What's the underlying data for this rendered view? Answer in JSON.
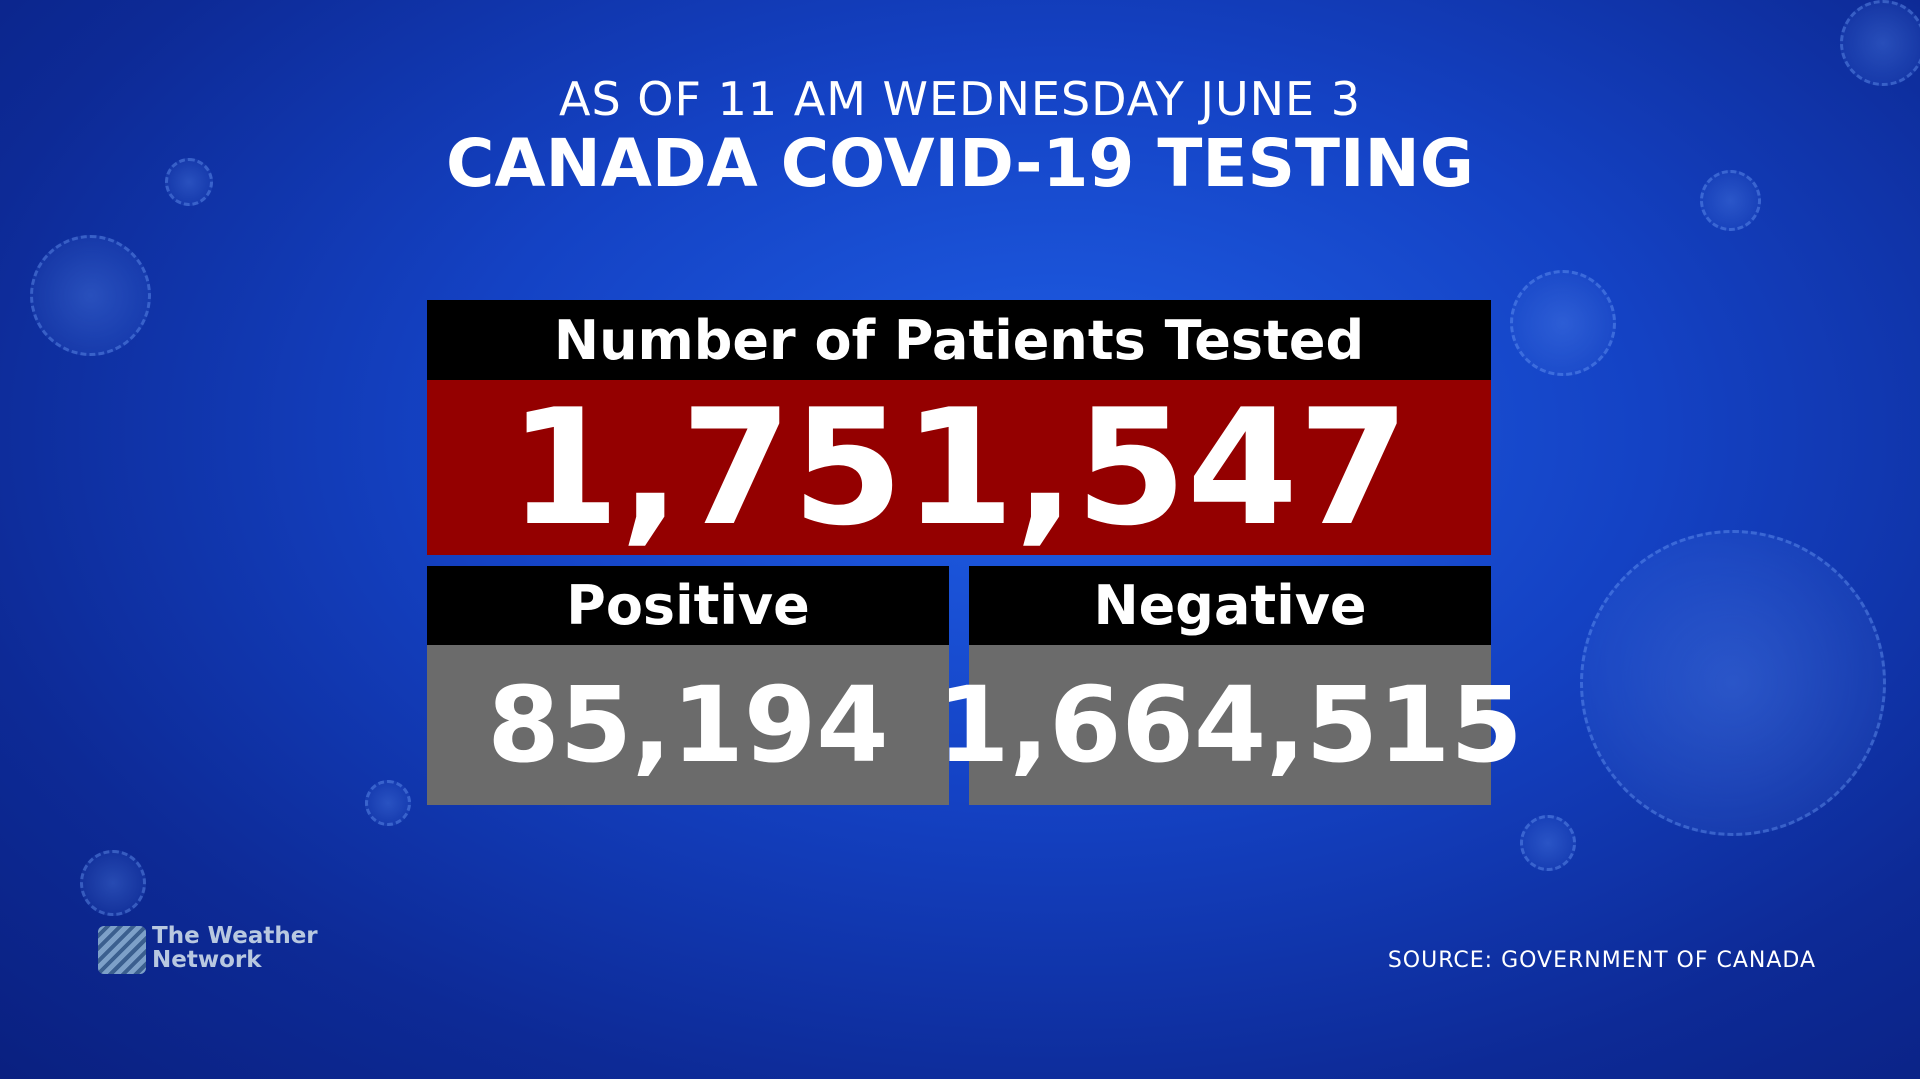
{
  "header": {
    "subtitle": "AS OF 11 AM WEDNESDAY JUNE 3",
    "title": "CANADA COVID-19 TESTING"
  },
  "total": {
    "label": "Number of Patients Tested",
    "value": "1,751,547"
  },
  "positive": {
    "label": "Positive",
    "value": "85,194"
  },
  "negative": {
    "label": "Negative",
    "value": "1,664,515"
  },
  "logo": {
    "line1": "The Weather",
    "line2": "Network"
  },
  "source": "SOURCE: GOVERNMENT OF CANADA"
}
